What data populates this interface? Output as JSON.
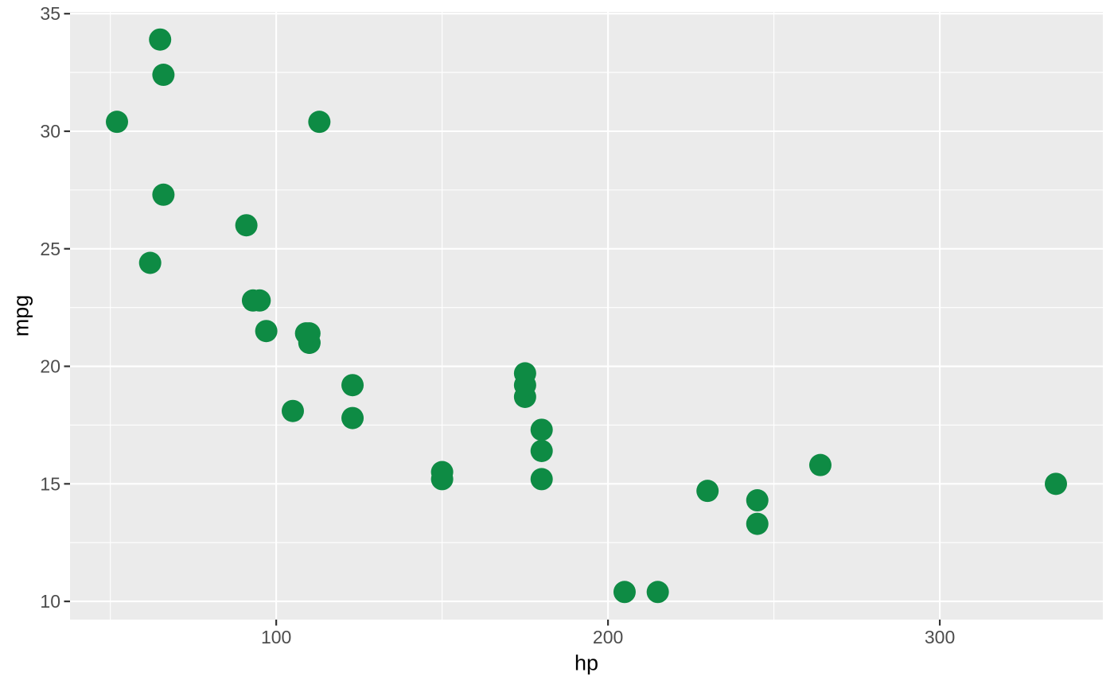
{
  "chart_data": {
    "type": "scatter",
    "title": "",
    "xlabel": "hp",
    "ylabel": "mpg",
    "xlim": [
      37.85,
      349.15
    ],
    "ylim": [
      9.225,
      35.075
    ],
    "x_major_ticks": [
      {
        "value": 100,
        "label": "100"
      },
      {
        "value": 200,
        "label": "200"
      },
      {
        "value": 300,
        "label": "300"
      }
    ],
    "y_major_ticks": [
      {
        "value": 10,
        "label": "10"
      },
      {
        "value": 15,
        "label": "15"
      },
      {
        "value": 20,
        "label": "20"
      },
      {
        "value": 25,
        "label": "25"
      },
      {
        "value": 30,
        "label": "30"
      },
      {
        "value": 35,
        "label": "35"
      }
    ],
    "x_minor_ticks": [
      50,
      150,
      250,
      350
    ],
    "y_minor_ticks": [
      12.5,
      17.5,
      22.5,
      27.5,
      32.5
    ],
    "grid": "on",
    "legend": "none",
    "points": [
      {
        "hp": 110,
        "mpg": 21.0
      },
      {
        "hp": 110,
        "mpg": 21.0
      },
      {
        "hp": 93,
        "mpg": 22.8
      },
      {
        "hp": 110,
        "mpg": 21.4
      },
      {
        "hp": 175,
        "mpg": 18.7
      },
      {
        "hp": 105,
        "mpg": 18.1
      },
      {
        "hp": 245,
        "mpg": 14.3
      },
      {
        "hp": 62,
        "mpg": 24.4
      },
      {
        "hp": 95,
        "mpg": 22.8
      },
      {
        "hp": 123,
        "mpg": 19.2
      },
      {
        "hp": 123,
        "mpg": 17.8
      },
      {
        "hp": 180,
        "mpg": 16.4
      },
      {
        "hp": 180,
        "mpg": 17.3
      },
      {
        "hp": 180,
        "mpg": 15.2
      },
      {
        "hp": 205,
        "mpg": 10.4
      },
      {
        "hp": 215,
        "mpg": 10.4
      },
      {
        "hp": 230,
        "mpg": 14.7
      },
      {
        "hp": 66,
        "mpg": 32.4
      },
      {
        "hp": 52,
        "mpg": 30.4
      },
      {
        "hp": 65,
        "mpg": 33.9
      },
      {
        "hp": 97,
        "mpg": 21.5
      },
      {
        "hp": 150,
        "mpg": 15.5
      },
      {
        "hp": 150,
        "mpg": 15.2
      },
      {
        "hp": 245,
        "mpg": 13.3
      },
      {
        "hp": 175,
        "mpg": 19.2
      },
      {
        "hp": 66,
        "mpg": 27.3
      },
      {
        "hp": 91,
        "mpg": 26.0
      },
      {
        "hp": 113,
        "mpg": 30.4
      },
      {
        "hp": 264,
        "mpg": 15.8
      },
      {
        "hp": 175,
        "mpg": 19.7
      },
      {
        "hp": 335,
        "mpg": 15.0
      },
      {
        "hp": 109,
        "mpg": 21.4
      }
    ],
    "colors": {
      "point": "#0e8b44",
      "panel_background": "#ebebeb",
      "gridline": "#ffffff",
      "tick_label": "#4d4d4d",
      "tick_mark": "#333333",
      "axis_title": "#000000",
      "outer_background": "#ffffff"
    }
  }
}
